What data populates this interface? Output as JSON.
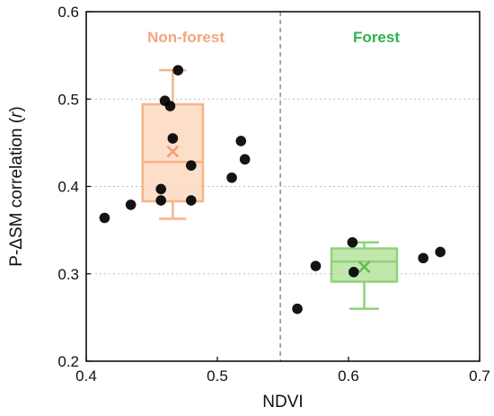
{
  "chart_data": {
    "type": "scatter",
    "xlabel": "NDVI",
    "ylabel_prefix": "P-ΔSM correlation (",
    "ylabel_var": "r",
    "ylabel_suffix": ")",
    "xlim": [
      0.4,
      0.7
    ],
    "ylim": [
      0.2,
      0.6
    ],
    "x_ticks": [
      "0.4",
      "0.5",
      "0.6",
      "0.7"
    ],
    "y_ticks": [
      "0.2",
      "0.3",
      "0.4",
      "0.5",
      "0.6"
    ],
    "grid": "horizontal-dotted",
    "divider_x": 0.548,
    "regions": [
      {
        "label": "Non-forest",
        "color": "#F4A582"
      },
      {
        "label": "Forest",
        "color": "#2DB34A"
      }
    ],
    "points": [
      {
        "x": 0.414,
        "y": 0.364
      },
      {
        "x": 0.434,
        "y": 0.379
      },
      {
        "x": 0.457,
        "y": 0.397
      },
      {
        "x": 0.457,
        "y": 0.384
      },
      {
        "x": 0.46,
        "y": 0.498
      },
      {
        "x": 0.464,
        "y": 0.492
      },
      {
        "x": 0.466,
        "y": 0.455
      },
      {
        "x": 0.47,
        "y": 0.533
      },
      {
        "x": 0.48,
        "y": 0.424
      },
      {
        "x": 0.48,
        "y": 0.384
      },
      {
        "x": 0.511,
        "y": 0.41
      },
      {
        "x": 0.518,
        "y": 0.452
      },
      {
        "x": 0.521,
        "y": 0.431
      },
      {
        "x": 0.561,
        "y": 0.26
      },
      {
        "x": 0.575,
        "y": 0.309
      },
      {
        "x": 0.603,
        "y": 0.336
      },
      {
        "x": 0.604,
        "y": 0.302
      },
      {
        "x": 0.657,
        "y": 0.318
      },
      {
        "x": 0.67,
        "y": 0.325
      }
    ],
    "boxes": [
      {
        "group": "Non-forest",
        "center_x": 0.466,
        "width": 0.046,
        "min": 0.363,
        "q1": 0.383,
        "median": 0.428,
        "q3": 0.494,
        "max": 0.533,
        "mean": 0.44,
        "fill": "#FDD9C0",
        "stroke": "#F6B487",
        "mean_color": "#EE9E7A"
      },
      {
        "group": "Forest",
        "center_x": 0.612,
        "width": 0.05,
        "min": 0.26,
        "q1": 0.291,
        "median": 0.314,
        "q3": 0.329,
        "max": 0.336,
        "mean": 0.308,
        "fill": "#B7E39E",
        "stroke": "#8FD27A",
        "mean_color": "#5EBE4E"
      }
    ]
  }
}
